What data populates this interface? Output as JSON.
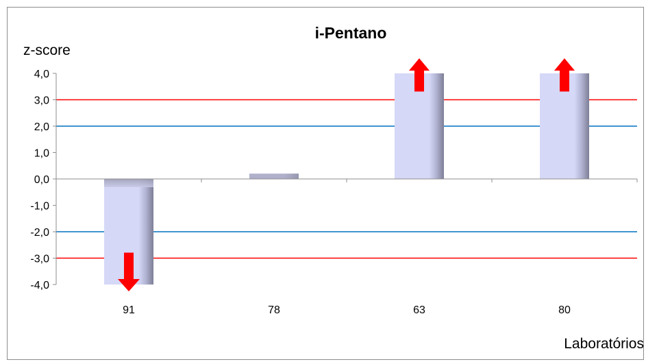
{
  "chart_data": {
    "type": "bar",
    "title": "i-Pentano",
    "ylabel": "z-score",
    "xlabel": "Laboratórios",
    "categories": [
      "91",
      "78",
      "63",
      "80"
    ],
    "values": [
      -4.0,
      0.2,
      4.0,
      4.0
    ],
    "ylim": [
      -4.0,
      4.0
    ],
    "yticks": [
      "4,0",
      "3,0",
      "2,0",
      "1,0",
      "0,0",
      "-1,0",
      "-2,0",
      "-3,0",
      "-4,0"
    ],
    "reference_lines": [
      {
        "value": 3.0,
        "color": "#ff0000"
      },
      {
        "value": -3.0,
        "color": "#ff0000"
      },
      {
        "value": 2.0,
        "color": "#0070c0"
      },
      {
        "value": -2.0,
        "color": "#0070c0"
      }
    ],
    "out_of_range_markers": [
      {
        "category": "91",
        "direction": "down"
      },
      {
        "category": "63",
        "direction": "up"
      },
      {
        "category": "80",
        "direction": "up"
      }
    ],
    "bar_color": "#d6d8f7",
    "bar_shadow_color": "#8e8fa8",
    "arrow_color": "#ff0000",
    "grid": false,
    "legend": "none"
  }
}
